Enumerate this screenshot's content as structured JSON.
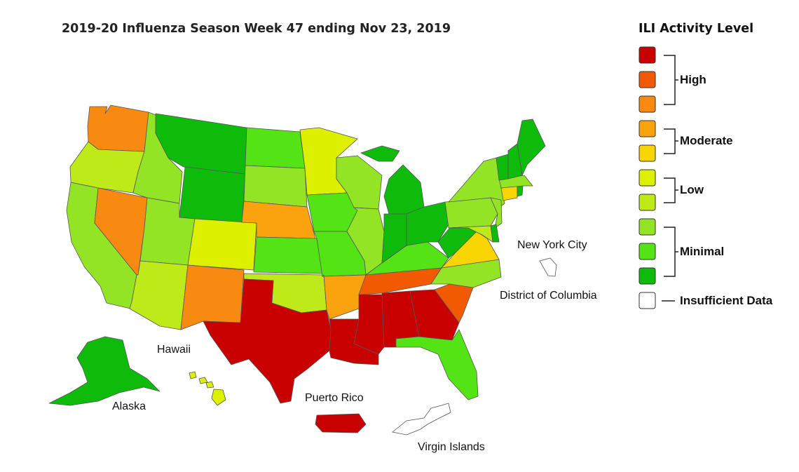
{
  "title": "2019-20 Influenza Season Week 47 ending Nov 23, 2019",
  "legend": {
    "title": "ILI Activity Level",
    "groups": {
      "high": "High",
      "moderate": "Moderate",
      "low": "Low",
      "minimal": "Minimal",
      "insufficient": "Insufficient Data"
    },
    "colors": {
      "level10": "#c80000",
      "level9": "#f15a00",
      "level8": "#f88a12",
      "level7": "#fba30e",
      "level6": "#f9d500",
      "level5": "#ddf000",
      "level4": "#bfea19",
      "level3": "#93e425",
      "level2": "#54e314",
      "level1": "#0ebb0b",
      "insufficient": "#ffffff"
    }
  },
  "places": {
    "nyc": "New York City",
    "dc": "District of Columbia",
    "hawaii": "Hawaii",
    "alaska": "Alaska",
    "puerto_rico": "Puerto Rico",
    "virgin_islands": "Virgin Islands"
  },
  "states": {
    "WA": "level8",
    "OR": "level4",
    "CA": "level3",
    "NV": "level8",
    "ID": "level3",
    "MT": "level1",
    "WY": "level1",
    "UT": "level3",
    "AZ": "level4",
    "CO": "level5",
    "NM": "level8",
    "ND": "level2",
    "SD": "level3",
    "NE": "level7",
    "KS": "level2",
    "OK": "level4",
    "TX": "level10",
    "MN": "level5",
    "IA": "level2",
    "MO": "level2",
    "AR": "level7",
    "LA": "level10",
    "WI": "level3",
    "IL": "level3",
    "MS": "level10",
    "MI": "level1",
    "IN": "level1",
    "KY": "level2",
    "TN": "level9",
    "AL": "level10",
    "GA": "level10",
    "FL": "level2",
    "SC": "level9",
    "NC": "level3",
    "VA": "level6",
    "WV": "level1",
    "OH": "level1",
    "PA": "level3",
    "NY": "level3",
    "VT": "level1",
    "NH": "level1",
    "ME": "level1",
    "MA": "level3",
    "CT": "level6",
    "RI": "level1",
    "NJ": "level3",
    "DE": "level1",
    "MD": "level4",
    "AK": "level1",
    "HI": "level5",
    "PR": "level10",
    "VI": "insufficient",
    "NYC": "insufficient",
    "DC": "insufficient"
  }
}
